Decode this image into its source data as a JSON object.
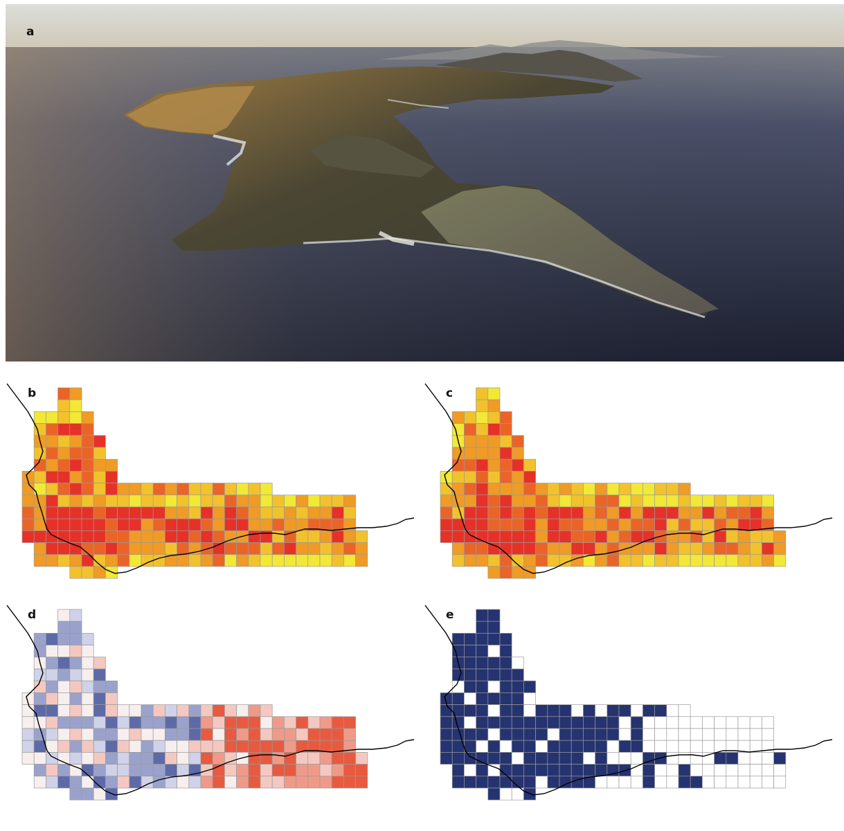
{
  "panels": {
    "a": {
      "label": "a"
    },
    "b": {
      "label": "b"
    },
    "c": {
      "label": "c"
    },
    "d": {
      "label": "d"
    },
    "e": {
      "label": "e"
    }
  },
  "photo": {
    "description_icon": "coastal-peninsula-aerial-photo",
    "colors": {
      "sky_top": "#d9dbd6",
      "sky_horizon": "#cfc7b2",
      "sea_dark": "#1f2336",
      "sea_mid": "#3b4258",
      "land_dark": "#3d3a2c",
      "land_warm": "#9a7a43",
      "cliff": "#6f6a5a",
      "surf": "#e9ecef"
    }
  },
  "maps": {
    "legend_colors": {
      "heat_scale": [
        "#f2e836",
        "#f2c22c",
        "#ef9b25",
        "#ea6428",
        "#e63128"
      ],
      "diverging_scale": [
        "#2b3a80",
        "#5e6aa8",
        "#9aa2cc",
        "#cfd2e8",
        "#f7eeee",
        "#f4c8c0",
        "#ef9a88",
        "#e85a3f"
      ],
      "binary": [
        "#ffffff",
        "#253370"
      ],
      "grid_line": "#9a9a9a",
      "coast": "#000000"
    },
    "grid": {
      "rows": [
        [
          2,
          3
        ],
        [
          2,
          3
        ],
        [
          0,
          4
        ],
        [
          0,
          4
        ],
        [
          0,
          5
        ],
        [
          0,
          5
        ],
        [
          0,
          6
        ],
        [
          -1,
          6
        ],
        [
          -1,
          19
        ],
        [
          -1,
          26
        ],
        [
          -1,
          26
        ],
        [
          -1,
          26
        ],
        [
          -1,
          27
        ],
        [
          0,
          27
        ],
        [
          0,
          27
        ],
        [
          3,
          6
        ]
      ]
    }
  }
}
